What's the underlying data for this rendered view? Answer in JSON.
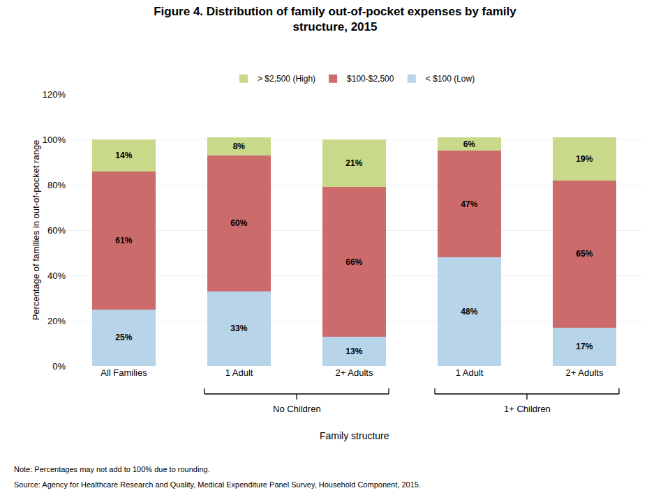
{
  "chart_data": {
    "type": "bar",
    "stacked": true,
    "title": "Figure 4. Distribution of family out-of-pocket expenses by family\nstructure, 2015",
    "categories": [
      "All Families",
      "1 Adult",
      "2+ Adults",
      "1 Adult",
      "2+ Adults"
    ],
    "series": [
      {
        "name": "< $100 (Low)",
        "color": "#b8d4e8",
        "values": [
          25,
          33,
          13,
          48,
          17
        ],
        "value_labels": [
          "25%",
          "33%",
          "13%",
          "48%",
          "17%"
        ]
      },
      {
        "name": "$100-$2,500",
        "color": "#cc6b6b",
        "values": [
          61,
          60,
          66,
          47,
          65
        ],
        "value_labels": [
          "61%",
          "60%",
          "66%",
          "47%",
          "65%"
        ]
      },
      {
        "name": "> $2,500 (High)",
        "color": "#c8d98a",
        "values": [
          14,
          8,
          21,
          6,
          19
        ],
        "value_labels": [
          "14%",
          "8%",
          "21%",
          "6%",
          "19%"
        ]
      }
    ],
    "xlabel": "Family structure",
    "ylabel": "Percentage of families in out-of-pocket range",
    "ylim": [
      0,
      120
    ],
    "yticks": [
      {
        "value": 0,
        "label": "0%"
      },
      {
        "value": 20,
        "label": "20%"
      },
      {
        "value": 40,
        "label": "40%"
      },
      {
        "value": 60,
        "label": "60%"
      },
      {
        "value": 80,
        "label": "80%"
      },
      {
        "value": 100,
        "label": "100%"
      },
      {
        "value": 120,
        "label": "120%"
      }
    ],
    "grid": true,
    "data_labels": true,
    "legend": "top",
    "annotations": [
      {
        "text": "No Children",
        "x": [
          1,
          2
        ]
      },
      {
        "text": "1+ Children",
        "x": [
          3,
          4
        ]
      },
      {
        "text": "Note: Percentages may not add to 100% due to rounding."
      },
      {
        "text": "Source: Agency for Healthcare Research and Quality, Medical Expenditure Panel Survey, Household Component, 2015."
      }
    ]
  }
}
